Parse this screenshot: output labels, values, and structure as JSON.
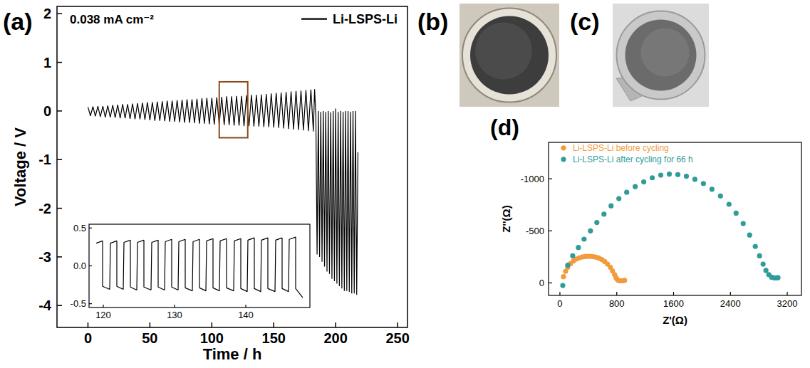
{
  "chart_data": [
    {
      "type": "line",
      "panel": "(a)",
      "annotation": "0.038 mA cm⁻²",
      "xlabel": "Time / h",
      "ylabel": "Voltage / V",
      "xlim": [
        -25,
        258
      ],
      "ylim": [
        -4.45,
        2.15
      ],
      "xticks": [
        0,
        50,
        100,
        150,
        200,
        250
      ],
      "yticks": [
        -4,
        -3,
        -2,
        -1,
        0,
        1,
        2
      ],
      "legend": "upper right",
      "highlight": {
        "x": [
          106,
          129
        ],
        "y": [
          -0.55,
          0.6
        ],
        "color": "#8b4a1c"
      },
      "x": [
        0,
        2,
        4,
        6,
        8,
        10,
        12,
        14,
        16,
        18,
        20,
        22,
        24,
        26,
        28,
        30,
        32,
        34,
        36,
        38,
        40,
        42,
        44,
        46,
        48,
        50,
        52,
        54,
        56,
        58,
        60,
        62,
        64,
        66,
        68,
        70,
        72,
        74,
        76,
        78,
        80,
        82,
        84,
        86,
        88,
        90,
        92,
        94,
        96,
        98,
        100,
        102,
        104,
        106,
        108,
        110,
        112,
        114,
        116,
        118,
        120,
        122,
        124,
        126,
        128,
        130,
        132,
        134,
        136,
        138,
        140,
        142,
        144,
        146,
        148,
        150,
        152,
        154,
        156,
        158,
        160,
        162,
        164,
        166,
        168,
        170,
        172,
        174,
        176,
        178,
        180,
        182,
        183,
        184,
        185,
        186,
        187,
        188,
        189,
        190,
        191,
        192,
        193,
        194,
        195,
        196,
        197,
        198,
        199,
        200,
        201,
        202,
        203,
        204,
        205,
        206,
        207,
        208,
        209,
        210,
        211,
        212,
        213,
        214,
        215,
        216,
        217,
        218
      ],
      "series": [
        {
          "name": "Li-LSPS-Li",
          "color": "#000000",
          "values": [
            0.08,
            -0.1,
            0.09,
            -0.11,
            0.1,
            -0.12,
            0.1,
            -0.13,
            0.11,
            -0.13,
            0.12,
            -0.14,
            0.13,
            -0.15,
            0.14,
            -0.15,
            0.14,
            -0.16,
            0.15,
            -0.17,
            0.16,
            -0.17,
            0.17,
            -0.18,
            0.18,
            -0.19,
            0.18,
            -0.2,
            0.19,
            -0.2,
            0.2,
            -0.21,
            0.21,
            -0.22,
            0.21,
            -0.22,
            0.22,
            -0.23,
            0.23,
            -0.24,
            0.24,
            -0.24,
            0.24,
            -0.25,
            0.25,
            -0.26,
            0.26,
            -0.26,
            0.27,
            -0.27,
            0.27,
            -0.28,
            0.28,
            -0.28,
            0.29,
            -0.29,
            0.3,
            -0.29,
            0.3,
            -0.3,
            0.31,
            -0.3,
            0.31,
            -0.31,
            0.32,
            -0.31,
            0.33,
            -0.32,
            0.33,
            -0.32,
            0.34,
            -0.33,
            0.35,
            -0.33,
            0.36,
            -0.34,
            0.37,
            -0.35,
            0.38,
            -0.36,
            0.39,
            -0.37,
            0.4,
            -0.38,
            0.41,
            -0.39,
            0.42,
            -0.4,
            0.43,
            -0.41,
            0.44,
            -0.42,
            0.45,
            -0.1,
            -2.95,
            0,
            -3.0,
            -0.02,
            -3.1,
            0,
            -3.2,
            -0.02,
            -3.3,
            0,
            -3.35,
            -0.03,
            -3.45,
            0,
            -3.5,
            0.05,
            -3.55,
            -0.02,
            -3.6,
            0,
            -3.65,
            -0.02,
            -3.7,
            0,
            -3.7,
            0,
            -3.72,
            -0.02,
            -3.75,
            0,
            -3.75,
            0,
            -3.78,
            -0.85
          ]
        }
      ]
    },
    {
      "type": "line",
      "xlim": [
        118,
        149
      ],
      "ylim": [
        -0.55,
        0.55
      ],
      "xticks": [
        120,
        130,
        140
      ],
      "yticks": [
        -0.5,
        {
          "value": 0,
          "label": "0.0"
        },
        0.5
      ],
      "x": [
        119.0,
        119.9,
        119.9,
        120.9,
        121.0,
        121.9,
        121.9,
        122.8,
        122.9,
        123.8,
        123.8,
        124.7,
        124.8,
        125.7,
        125.7,
        126.7,
        126.8,
        127.7,
        127.7,
        128.6,
        128.7,
        129.6,
        129.6,
        130.5,
        130.6,
        131.5,
        131.5,
        132.5,
        132.6,
        133.5,
        133.5,
        134.4,
        134.5,
        135.4,
        135.4,
        136.3,
        136.4,
        137.3,
        137.3,
        138.3,
        138.4,
        139.3,
        139.3,
        140.2,
        140.3,
        141.2,
        141.2,
        142.1,
        142.2,
        143.1,
        143.1,
        144.1,
        144.2,
        145.1,
        145.1,
        146.0,
        146.1,
        147.0,
        147.0,
        148.0
      ],
      "series": [
        {
          "color": "#000000",
          "values": [
            0.3,
            0.33,
            -0.27,
            -0.31,
            0.3,
            0.33,
            -0.27,
            -0.31,
            0.31,
            0.34,
            -0.28,
            -0.32,
            0.31,
            0.34,
            -0.28,
            -0.32,
            0.31,
            0.34,
            -0.28,
            -0.32,
            0.32,
            0.35,
            -0.28,
            -0.32,
            0.32,
            0.35,
            -0.29,
            -0.33,
            0.32,
            0.35,
            -0.29,
            -0.33,
            0.33,
            0.36,
            -0.29,
            -0.33,
            0.33,
            0.36,
            -0.29,
            -0.33,
            0.33,
            0.36,
            -0.3,
            -0.34,
            0.34,
            0.37,
            -0.3,
            -0.34,
            0.34,
            0.37,
            -0.3,
            -0.34,
            0.34,
            0.37,
            -0.3,
            -0.34,
            0.35,
            0.38,
            -0.3,
            -0.42
          ]
        }
      ]
    },
    {
      "type": "scatter",
      "panel": "(d)",
      "xlabel": "Z'(Ω)",
      "ylabel": "Z''(Ω)",
      "xlim": [
        -160,
        3400
      ],
      "ylim": [
        120,
        -1350
      ],
      "xticks": [
        0,
        800,
        1600,
        2400,
        3200
      ],
      "yticks": [
        -1000,
        -500,
        0
      ],
      "legend": "upper left",
      "series": [
        {
          "name": "Li-LSPS-Li before cycling",
          "color": "#f39a3c",
          "marker": "circle",
          "x": [
            50,
            80,
            110,
            150,
            190,
            230,
            270,
            310,
            350,
            390,
            430,
            470,
            510,
            550,
            590,
            630,
            670,
            710,
            740,
            770,
            790,
            810,
            830,
            850,
            870,
            890,
            910
          ],
          "values": [
            -60,
            -110,
            -150,
            -185,
            -210,
            -228,
            -240,
            -248,
            -253,
            -255,
            -255,
            -252,
            -247,
            -238,
            -225,
            -205,
            -180,
            -150,
            -115,
            -80,
            -50,
            -30,
            -22,
            -20,
            -20,
            -22,
            -24
          ]
        },
        {
          "name": "Li-LSPS-Li after cycling for 66 h",
          "color": "#2f9c98",
          "marker": "circle",
          "x": [
            40,
            110,
            180,
            260,
            340,
            430,
            520,
            620,
            720,
            830,
            940,
            1060,
            1180,
            1300,
            1420,
            1540,
            1660,
            1780,
            1900,
            2020,
            2140,
            2260,
            2380,
            2480,
            2580,
            2670,
            2750,
            2810,
            2860,
            2900,
            2940,
            2980,
            3020,
            3050,
            3070
          ],
          "values": [
            25,
            -170,
            -260,
            -340,
            -420,
            -500,
            -580,
            -660,
            -740,
            -810,
            -870,
            -925,
            -970,
            -1010,
            -1035,
            -1045,
            -1040,
            -1025,
            -995,
            -955,
            -900,
            -835,
            -755,
            -670,
            -570,
            -460,
            -350,
            -260,
            -180,
            -120,
            -80,
            -55,
            -48,
            -48,
            -50
          ]
        }
      ]
    }
  ],
  "photos": [
    {
      "label": "(b)"
    },
    {
      "label": "(c)"
    }
  ]
}
